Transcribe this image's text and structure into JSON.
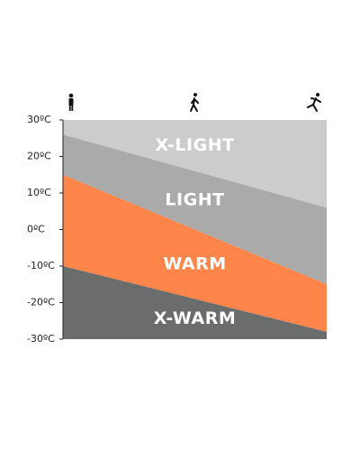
{
  "chart_data": {
    "type": "bands",
    "ylim": [
      -30,
      30
    ],
    "yticks": [
      {
        "value": 30,
        "label": "30ºC"
      },
      {
        "value": 20,
        "label": "20ºC"
      },
      {
        "value": 10,
        "label": "10ºC"
      },
      {
        "value": 0,
        "label": "0ºC"
      },
      {
        "value": -10,
        "label": "-10ºC"
      },
      {
        "value": -20,
        "label": "-20ºC"
      },
      {
        "value": -30,
        "label": "-30ºC"
      }
    ],
    "series": [
      {
        "name": "X-LIGHT",
        "color": "#cccccc",
        "values": [
          30,
          30
        ]
      },
      {
        "name": "LIGHT",
        "color": "#aaaaaa",
        "values": [
          26,
          6
        ]
      },
      {
        "name": "WARM",
        "color": "#ff854a",
        "values": [
          15,
          -15
        ]
      },
      {
        "name": "X-WARM",
        "color": "#6b6d6d",
        "values": [
          -10,
          -28
        ]
      }
    ]
  }
}
